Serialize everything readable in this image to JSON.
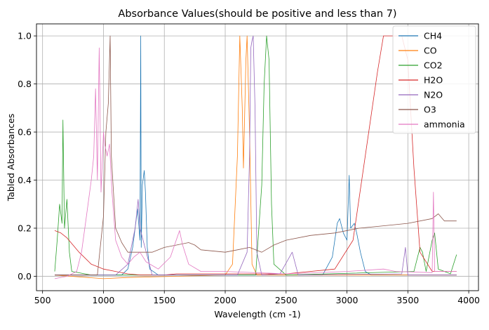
{
  "chart_data": {
    "type": "line",
    "title": "Absorbance Values(should be positive and less than 7)",
    "xlabel": "Wavelength (cm -1)",
    "ylabel": "Tabled Absorbances",
    "xlim": [
      450,
      4080
    ],
    "ylim": [
      -0.06,
      1.05
    ],
    "xticks": [
      500,
      1000,
      1500,
      2000,
      2500,
      3000,
      3500,
      4000
    ],
    "yticks": [
      0.0,
      0.2,
      0.4,
      0.6,
      0.8,
      1.0
    ],
    "xtick_labels": [
      "500",
      "1000",
      "1500",
      "2000",
      "2500",
      "3000",
      "3500",
      "4000"
    ],
    "ytick_labels": [
      "0.0",
      "0.2",
      "0.4",
      "0.6",
      "0.8",
      "1.0"
    ],
    "grid": true,
    "legend_position": "top-right",
    "series": [
      {
        "name": "CH4",
        "color": "#1f77b4",
        "points": [
          [
            600,
            0.005
          ],
          [
            1150,
            0.005
          ],
          [
            1200,
            0.03
          ],
          [
            1240,
            0.12
          ],
          [
            1260,
            0.2
          ],
          [
            1280,
            0.28
          ],
          [
            1300,
            0.15
          ],
          [
            1306,
            1.0
          ],
          [
            1310,
            0.12
          ],
          [
            1320,
            0.38
          ],
          [
            1335,
            0.44
          ],
          [
            1345,
            0.35
          ],
          [
            1360,
            0.12
          ],
          [
            1380,
            0.03
          ],
          [
            1450,
            0.005
          ],
          [
            2800,
            0.005
          ],
          [
            2880,
            0.08
          ],
          [
            2920,
            0.22
          ],
          [
            2940,
            0.24
          ],
          [
            2970,
            0.18
          ],
          [
            3000,
            0.15
          ],
          [
            3018,
            0.42
          ],
          [
            3030,
            0.2
          ],
          [
            3060,
            0.22
          ],
          [
            3080,
            0.18
          ],
          [
            3110,
            0.1
          ],
          [
            3150,
            0.02
          ],
          [
            3200,
            0.005
          ],
          [
            3900,
            0.005
          ]
        ]
      },
      {
        "name": "CO",
        "color": "#ff7f0e",
        "points": [
          [
            600,
            0.005
          ],
          [
            1000,
            -0.01
          ],
          [
            1200,
            -0.005
          ],
          [
            2000,
            0.005
          ],
          [
            2060,
            0.05
          ],
          [
            2100,
            0.5
          ],
          [
            2120,
            1.0
          ],
          [
            2140,
            0.7
          ],
          [
            2150,
            0.45
          ],
          [
            2170,
            0.9
          ],
          [
            2180,
            1.0
          ],
          [
            2200,
            0.6
          ],
          [
            2220,
            0.05
          ],
          [
            2260,
            0.005
          ],
          [
            3900,
            0.005
          ]
        ]
      },
      {
        "name": "CO2",
        "color": "#2ca02c",
        "points": [
          [
            600,
            0.02
          ],
          [
            620,
            0.15
          ],
          [
            640,
            0.3
          ],
          [
            660,
            0.22
          ],
          [
            667,
            0.65
          ],
          [
            680,
            0.2
          ],
          [
            700,
            0.32
          ],
          [
            720,
            0.1
          ],
          [
            740,
            0.02
          ],
          [
            900,
            0.005
          ],
          [
            2250,
            0.005
          ],
          [
            2300,
            0.38
          ],
          [
            2320,
            0.8
          ],
          [
            2340,
            1.0
          ],
          [
            2360,
            0.9
          ],
          [
            2380,
            0.3
          ],
          [
            2400,
            0.05
          ],
          [
            2500,
            0.005
          ],
          [
            3550,
            0.02
          ],
          [
            3600,
            0.12
          ],
          [
            3620,
            0.1
          ],
          [
            3650,
            0.02
          ],
          [
            3700,
            0.15
          ],
          [
            3720,
            0.18
          ],
          [
            3750,
            0.03
          ],
          [
            3850,
            0.01
          ],
          [
            3900,
            0.09
          ]
        ]
      },
      {
        "name": "H2O",
        "color": "#d62728",
        "points": [
          [
            600,
            0.19
          ],
          [
            650,
            0.18
          ],
          [
            700,
            0.16
          ],
          [
            800,
            0.1
          ],
          [
            900,
            0.05
          ],
          [
            1000,
            0.03
          ],
          [
            1100,
            0.02
          ],
          [
            1200,
            0.01
          ],
          [
            1300,
            0.005
          ],
          [
            1500,
            0.005
          ],
          [
            1600,
            0.01
          ],
          [
            2000,
            0.01
          ],
          [
            2500,
            0.01
          ],
          [
            2900,
            0.03
          ],
          [
            3050,
            0.15
          ],
          [
            3150,
            0.5
          ],
          [
            3250,
            0.85
          ],
          [
            3300,
            1.0
          ],
          [
            3450,
            1.0
          ],
          [
            3500,
            0.9
          ],
          [
            3550,
            0.45
          ],
          [
            3600,
            0.1
          ],
          [
            3700,
            0.02
          ],
          [
            3900,
            0.02
          ]
        ]
      },
      {
        "name": "N2O",
        "color": "#9467bd",
        "points": [
          [
            600,
            0.005
          ],
          [
            1100,
            0.005
          ],
          [
            1200,
            0.05
          ],
          [
            1260,
            0.2
          ],
          [
            1285,
            0.32
          ],
          [
            1300,
            0.2
          ],
          [
            1400,
            0.005
          ],
          [
            2100,
            0.005
          ],
          [
            2180,
            0.1
          ],
          [
            2200,
            0.5
          ],
          [
            2210,
            0.95
          ],
          [
            2220,
            0.98
          ],
          [
            2230,
            1.0
          ],
          [
            2245,
            0.7
          ],
          [
            2260,
            0.1
          ],
          [
            2300,
            0.005
          ],
          [
            2450,
            0.01
          ],
          [
            2550,
            0.1
          ],
          [
            2600,
            0.005
          ],
          [
            3450,
            0.01
          ],
          [
            3480,
            0.12
          ],
          [
            3500,
            0.005
          ],
          [
            3900,
            0.005
          ]
        ]
      },
      {
        "name": "O3",
        "color": "#8c564b",
        "points": [
          [
            600,
            0.005
          ],
          [
            950,
            0.005
          ],
          [
            1000,
            0.25
          ],
          [
            1020,
            0.6
          ],
          [
            1040,
            0.72
          ],
          [
            1055,
            1.0
          ],
          [
            1065,
            0.5
          ],
          [
            1100,
            0.2
          ],
          [
            1150,
            0.14
          ],
          [
            1200,
            0.1
          ],
          [
            1250,
            0.1
          ],
          [
            1350,
            0.1
          ],
          [
            1400,
            0.1
          ],
          [
            1500,
            0.12
          ],
          [
            1600,
            0.13
          ],
          [
            1700,
            0.14
          ],
          [
            1750,
            0.13
          ],
          [
            1800,
            0.11
          ],
          [
            2000,
            0.1
          ],
          [
            2100,
            0.11
          ],
          [
            2200,
            0.12
          ],
          [
            2300,
            0.1
          ],
          [
            2400,
            0.13
          ],
          [
            2500,
            0.15
          ],
          [
            2700,
            0.17
          ],
          [
            2900,
            0.18
          ],
          [
            3100,
            0.2
          ],
          [
            3300,
            0.21
          ],
          [
            3500,
            0.22
          ],
          [
            3700,
            0.24
          ],
          [
            3750,
            0.26
          ],
          [
            3800,
            0.23
          ],
          [
            3900,
            0.23
          ]
        ]
      },
      {
        "name": "ammonia",
        "color": "#e377c2",
        "points": [
          [
            600,
            -0.01
          ],
          [
            700,
            0.0
          ],
          [
            780,
            0.02
          ],
          [
            820,
            0.1
          ],
          [
            860,
            0.25
          ],
          [
            900,
            0.4
          ],
          [
            920,
            0.5
          ],
          [
            935,
            0.78
          ],
          [
            950,
            0.4
          ],
          [
            965,
            0.95
          ],
          [
            980,
            0.35
          ],
          [
            1000,
            0.6
          ],
          [
            1010,
            0.55
          ],
          [
            1030,
            0.5
          ],
          [
            1050,
            0.55
          ],
          [
            1070,
            0.35
          ],
          [
            1100,
            0.15
          ],
          [
            1150,
            0.08
          ],
          [
            1200,
            0.05
          ],
          [
            1250,
            0.08
          ],
          [
            1300,
            0.1
          ],
          [
            1350,
            0.06
          ],
          [
            1450,
            0.03
          ],
          [
            1550,
            0.08
          ],
          [
            1625,
            0.19
          ],
          [
            1650,
            0.13
          ],
          [
            1700,
            0.05
          ],
          [
            1800,
            0.02
          ],
          [
            2000,
            0.02
          ],
          [
            2500,
            0.01
          ],
          [
            3000,
            0.02
          ],
          [
            3300,
            0.03
          ],
          [
            3400,
            0.02
          ],
          [
            3700,
            0.015
          ],
          [
            3710,
            0.35
          ],
          [
            3720,
            0.02
          ],
          [
            3900,
            0.02
          ]
        ]
      }
    ]
  }
}
